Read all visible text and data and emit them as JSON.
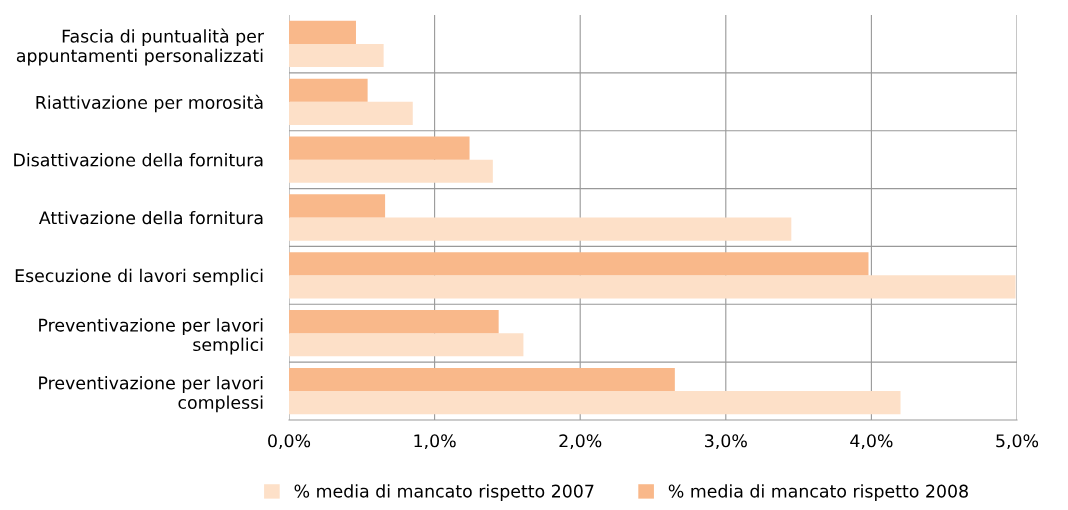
{
  "chart_data": {
    "type": "bar",
    "orientation": "horizontal",
    "categories": [
      "Fascia di puntualità per\nappuntamenti personalizzati",
      "Riattivazione per morosità",
      "Disattivazione della fornitura",
      "Attivazione della fornitura",
      "Esecuzione di lavori semplici",
      "Preventivazione per lavori\nsemplici",
      "Preventivazione per lavori\ncomplessi"
    ],
    "series": [
      {
        "name": "% media di mancato rispetto 2007",
        "color": "#fde0c8",
        "values": [
          0.65,
          0.85,
          1.4,
          3.45,
          4.99,
          1.61,
          4.2
        ]
      },
      {
        "name": "% media di mancato rispetto 2008",
        "color": "#f9b88a",
        "values": [
          0.46,
          0.54,
          1.24,
          0.66,
          3.98,
          1.44,
          2.65
        ]
      }
    ],
    "xlim": [
      0,
      5
    ],
    "xticks": [
      {
        "value": 0,
        "label": "0,0%"
      },
      {
        "value": 1,
        "label": "1,0%"
      },
      {
        "value": 2,
        "label": "2,0%"
      },
      {
        "value": 3,
        "label": "3,0%"
      },
      {
        "value": 4,
        "label": "4,0%"
      },
      {
        "value": 5,
        "label": "5,0%"
      }
    ],
    "grid": true,
    "legend": "bottom"
  }
}
